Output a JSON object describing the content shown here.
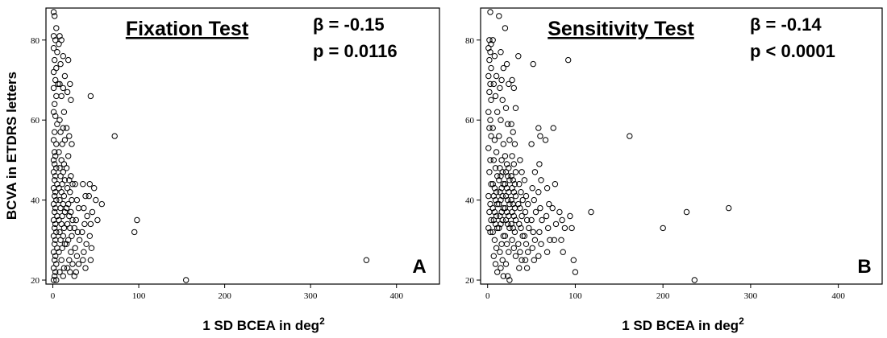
{
  "ylabel": "BCVA in ETDRS letters",
  "chart_data": [
    {
      "type": "scatter",
      "title": "Fixation Test",
      "annotations": [
        "β = -0.15",
        "p = 0.0116"
      ],
      "panel_label": "A",
      "xlabel": "1 SD BCEA in deg",
      "xlabel_superscript": "2",
      "ylabel": "BCVA in ETDRS letters",
      "xlim": [
        -8,
        450
      ],
      "ylim": [
        19,
        88
      ],
      "xticks": [
        0,
        100,
        200,
        300,
        400
      ],
      "yticks": [
        20,
        40,
        60,
        80
      ],
      "grid": false,
      "marker": "open-circle",
      "points": [
        [
          1,
          87
        ],
        [
          2,
          86
        ],
        [
          4,
          83
        ],
        [
          1,
          81
        ],
        [
          3,
          80
        ],
        [
          1,
          78
        ],
        [
          5,
          77
        ],
        [
          2,
          75
        ],
        [
          4,
          73
        ],
        [
          1,
          72
        ],
        [
          3,
          70
        ],
        [
          6,
          69
        ],
        [
          1,
          68
        ],
        [
          4,
          66
        ],
        [
          2,
          64
        ],
        [
          1,
          62
        ],
        [
          3,
          61
        ],
        [
          5,
          59
        ],
        [
          2,
          57
        ],
        [
          1,
          55
        ],
        [
          4,
          54
        ],
        [
          2,
          52
        ],
        [
          3,
          51
        ],
        [
          1,
          50
        ],
        [
          2,
          49
        ],
        [
          4,
          48
        ],
        [
          1,
          47
        ],
        [
          3,
          46
        ],
        [
          2,
          45
        ],
        [
          5,
          44
        ],
        [
          1,
          43
        ],
        [
          3,
          42
        ],
        [
          2,
          41
        ],
        [
          4,
          40
        ],
        [
          1,
          39
        ],
        [
          3,
          38
        ],
        [
          2,
          37
        ],
        [
          5,
          36
        ],
        [
          1,
          35
        ],
        [
          3,
          34
        ],
        [
          2,
          33
        ],
        [
          4,
          32
        ],
        [
          1,
          31
        ],
        [
          3,
          30
        ],
        [
          2,
          29
        ],
        [
          5,
          28
        ],
        [
          1,
          27
        ],
        [
          3,
          26
        ],
        [
          2,
          25
        ],
        [
          4,
          24
        ],
        [
          1,
          23
        ],
        [
          3,
          22
        ],
        [
          2,
          21
        ],
        [
          4,
          20
        ],
        [
          1,
          20
        ],
        [
          8,
          81
        ],
        [
          7,
          79
        ],
        [
          10,
          80
        ],
        [
          12,
          76
        ],
        [
          9,
          74
        ],
        [
          14,
          71
        ],
        [
          8,
          69
        ],
        [
          12,
          68
        ],
        [
          10,
          66
        ],
        [
          13,
          62
        ],
        [
          8,
          60
        ],
        [
          12,
          58
        ],
        [
          9,
          57
        ],
        [
          14,
          55
        ],
        [
          11,
          54
        ],
        [
          7,
          52
        ],
        [
          10,
          50
        ],
        [
          13,
          49
        ],
        [
          8,
          48
        ],
        [
          12,
          47
        ],
        [
          9,
          46
        ],
        [
          14,
          45
        ],
        [
          11,
          44
        ],
        [
          7,
          43
        ],
        [
          10,
          42
        ],
        [
          13,
          41
        ],
        [
          8,
          40
        ],
        [
          12,
          39
        ],
        [
          9,
          38
        ],
        [
          14,
          37
        ],
        [
          11,
          36
        ],
        [
          7,
          35
        ],
        [
          10,
          34
        ],
        [
          13,
          33
        ],
        [
          8,
          32
        ],
        [
          12,
          31
        ],
        [
          9,
          30
        ],
        [
          14,
          29
        ],
        [
          11,
          28
        ],
        [
          7,
          27
        ],
        [
          10,
          25
        ],
        [
          13,
          23
        ],
        [
          8,
          22
        ],
        [
          12,
          21
        ],
        [
          18,
          75
        ],
        [
          20,
          69
        ],
        [
          17,
          67
        ],
        [
          21,
          65
        ],
        [
          16,
          58
        ],
        [
          19,
          56
        ],
        [
          22,
          54
        ],
        [
          18,
          51
        ],
        [
          16,
          48
        ],
        [
          21,
          46
        ],
        [
          19,
          45
        ],
        [
          23,
          44
        ],
        [
          17,
          43
        ],
        [
          20,
          42
        ],
        [
          22,
          40
        ],
        [
          18,
          39
        ],
        [
          16,
          38
        ],
        [
          21,
          37
        ],
        [
          19,
          36
        ],
        [
          23,
          35
        ],
        [
          17,
          34
        ],
        [
          20,
          33
        ],
        [
          22,
          31
        ],
        [
          18,
          30
        ],
        [
          16,
          29
        ],
        [
          21,
          27
        ],
        [
          19,
          25
        ],
        [
          23,
          24
        ],
        [
          17,
          23
        ],
        [
          20,
          22
        ],
        [
          26,
          44
        ],
        [
          28,
          40
        ],
        [
          30,
          38
        ],
        [
          27,
          35
        ],
        [
          25,
          33
        ],
        [
          29,
          32
        ],
        [
          31,
          30
        ],
        [
          26,
          28
        ],
        [
          28,
          26
        ],
        [
          30,
          24
        ],
        [
          27,
          22
        ],
        [
          25,
          21
        ],
        [
          35,
          44
        ],
        [
          38,
          41
        ],
        [
          36,
          38
        ],
        [
          40,
          36
        ],
        [
          37,
          34
        ],
        [
          34,
          32
        ],
        [
          39,
          29
        ],
        [
          36,
          27
        ],
        [
          35,
          25
        ],
        [
          38,
          23
        ],
        [
          44,
          66
        ],
        [
          43,
          44
        ],
        [
          42,
          41
        ],
        [
          46,
          37
        ],
        [
          44,
          34
        ],
        [
          43,
          31
        ],
        [
          45,
          28
        ],
        [
          44,
          25
        ],
        [
          48,
          43
        ],
        [
          50,
          40
        ],
        [
          52,
          35
        ],
        [
          57,
          39
        ],
        [
          72,
          56
        ],
        [
          95,
          32
        ],
        [
          98,
          35
        ],
        [
          155,
          20
        ],
        [
          365,
          25
        ]
      ]
    },
    {
      "type": "scatter",
      "title": "Sensitivity Test",
      "annotations": [
        "β = -0.14",
        "p < 0.0001"
      ],
      "panel_label": "B",
      "xlabel": "1 SD BCEA in deg",
      "xlabel_superscript": "2",
      "ylabel": "",
      "xlim": [
        -8,
        450
      ],
      "ylim": [
        19,
        88
      ],
      "xticks": [
        0,
        100,
        200,
        300,
        400
      ],
      "yticks": [
        20,
        40,
        60,
        80
      ],
      "grid": false,
      "marker": "open-circle",
      "points": [
        [
          3,
          87
        ],
        [
          2,
          80
        ],
        [
          4,
          79
        ],
        [
          1,
          78
        ],
        [
          3,
          77
        ],
        [
          2,
          75
        ],
        [
          4,
          73
        ],
        [
          1,
          71
        ],
        [
          3,
          69
        ],
        [
          2,
          67
        ],
        [
          4,
          65
        ],
        [
          1,
          62
        ],
        [
          3,
          60
        ],
        [
          2,
          58
        ],
        [
          4,
          56
        ],
        [
          1,
          53
        ],
        [
          3,
          50
        ],
        [
          2,
          47
        ],
        [
          4,
          44
        ],
        [
          1,
          41
        ],
        [
          3,
          39
        ],
        [
          2,
          37
        ],
        [
          4,
          35
        ],
        [
          1,
          33
        ],
        [
          3,
          32
        ],
        [
          6,
          80
        ],
        [
          8,
          76
        ],
        [
          10,
          71
        ],
        [
          7,
          69
        ],
        [
          9,
          66
        ],
        [
          11,
          62
        ],
        [
          6,
          58
        ],
        [
          8,
          55
        ],
        [
          10,
          52
        ],
        [
          7,
          50
        ],
        [
          9,
          48
        ],
        [
          11,
          46
        ],
        [
          6,
          44
        ],
        [
          8,
          43
        ],
        [
          10,
          42
        ],
        [
          7,
          41
        ],
        [
          9,
          40
        ],
        [
          11,
          39
        ],
        [
          6,
          38
        ],
        [
          8,
          37
        ],
        [
          10,
          36
        ],
        [
          7,
          35
        ],
        [
          9,
          34
        ],
        [
          11,
          33
        ],
        [
          6,
          32
        ],
        [
          8,
          30
        ],
        [
          10,
          28
        ],
        [
          7,
          26
        ],
        [
          9,
          24
        ],
        [
          11,
          22
        ],
        [
          13,
          86
        ],
        [
          15,
          77
        ],
        [
          18,
          73
        ],
        [
          16,
          70
        ],
        [
          14,
          68
        ],
        [
          17,
          65
        ],
        [
          15,
          60
        ],
        [
          13,
          56
        ],
        [
          18,
          54
        ],
        [
          16,
          50
        ],
        [
          14,
          48
        ],
        [
          17,
          47
        ],
        [
          15,
          46
        ],
        [
          13,
          45
        ],
        [
          18,
          44
        ],
        [
          16,
          43
        ],
        [
          14,
          42
        ],
        [
          17,
          41
        ],
        [
          15,
          40
        ],
        [
          13,
          39
        ],
        [
          18,
          38
        ],
        [
          16,
          37
        ],
        [
          14,
          36
        ],
        [
          17,
          35
        ],
        [
          15,
          34
        ],
        [
          13,
          33
        ],
        [
          18,
          31
        ],
        [
          16,
          29
        ],
        [
          14,
          27
        ],
        [
          17,
          25
        ],
        [
          15,
          23
        ],
        [
          18,
          21
        ],
        [
          20,
          83
        ],
        [
          22,
          74
        ],
        [
          24,
          69
        ],
        [
          21,
          63
        ],
        [
          23,
          59
        ],
        [
          25,
          55
        ],
        [
          20,
          51
        ],
        [
          22,
          49
        ],
        [
          24,
          48
        ],
        [
          21,
          47
        ],
        [
          23,
          46
        ],
        [
          25,
          45
        ],
        [
          20,
          44
        ],
        [
          22,
          43
        ],
        [
          24,
          42
        ],
        [
          21,
          41
        ],
        [
          23,
          40
        ],
        [
          25,
          39
        ],
        [
          20,
          38
        ],
        [
          22,
          37
        ],
        [
          24,
          36
        ],
        [
          21,
          35
        ],
        [
          23,
          34
        ],
        [
          25,
          33
        ],
        [
          20,
          31
        ],
        [
          22,
          29
        ],
        [
          24,
          27
        ],
        [
          21,
          24
        ],
        [
          23,
          21
        ],
        [
          25,
          20
        ],
        [
          28,
          70
        ],
        [
          30,
          68
        ],
        [
          32,
          63
        ],
        [
          27,
          59
        ],
        [
          29,
          57
        ],
        [
          31,
          54
        ],
        [
          28,
          51
        ],
        [
          30,
          49
        ],
        [
          32,
          47
        ],
        [
          27,
          46
        ],
        [
          29,
          45
        ],
        [
          31,
          44
        ],
        [
          28,
          43
        ],
        [
          30,
          42
        ],
        [
          32,
          41
        ],
        [
          27,
          40
        ],
        [
          29,
          39
        ],
        [
          31,
          38
        ],
        [
          28,
          37
        ],
        [
          30,
          36
        ],
        [
          32,
          35
        ],
        [
          27,
          34
        ],
        [
          29,
          33
        ],
        [
          31,
          32
        ],
        [
          28,
          30
        ],
        [
          30,
          28
        ],
        [
          32,
          26
        ],
        [
          35,
          76
        ],
        [
          37,
          50
        ],
        [
          39,
          47
        ],
        [
          36,
          44
        ],
        [
          38,
          42
        ],
        [
          40,
          40
        ],
        [
          35,
          39
        ],
        [
          37,
          38
        ],
        [
          39,
          36
        ],
        [
          36,
          34
        ],
        [
          38,
          33
        ],
        [
          40,
          31
        ],
        [
          35,
          29
        ],
        [
          37,
          27
        ],
        [
          39,
          25
        ],
        [
          36,
          23
        ],
        [
          42,
          45
        ],
        [
          44,
          41
        ],
        [
          46,
          39
        ],
        [
          43,
          37
        ],
        [
          45,
          35
        ],
        [
          47,
          33
        ],
        [
          42,
          31
        ],
        [
          44,
          29
        ],
        [
          46,
          27
        ],
        [
          43,
          25
        ],
        [
          45,
          23
        ],
        [
          52,
          74
        ],
        [
          50,
          54
        ],
        [
          54,
          47
        ],
        [
          51,
          43
        ],
        [
          53,
          40
        ],
        [
          55,
          37
        ],
        [
          50,
          35
        ],
        [
          52,
          32
        ],
        [
          54,
          30
        ],
        [
          51,
          28
        ],
        [
          53,
          25
        ],
        [
          58,
          58
        ],
        [
          60,
          56
        ],
        [
          59,
          49
        ],
        [
          61,
          45
        ],
        [
          58,
          42
        ],
        [
          60,
          38
        ],
        [
          62,
          35
        ],
        [
          59,
          32
        ],
        [
          61,
          29
        ],
        [
          58,
          26
        ],
        [
          66,
          55
        ],
        [
          68,
          43
        ],
        [
          70,
          39
        ],
        [
          67,
          36
        ],
        [
          69,
          33
        ],
        [
          71,
          30
        ],
        [
          68,
          27
        ],
        [
          75,
          58
        ],
        [
          77,
          44
        ],
        [
          74,
          38
        ],
        [
          78,
          34
        ],
        [
          76,
          30
        ],
        [
          82,
          37
        ],
        [
          85,
          35
        ],
        [
          88,
          33
        ],
        [
          84,
          30
        ],
        [
          86,
          27
        ],
        [
          92,
          75
        ],
        [
          94,
          36
        ],
        [
          96,
          33
        ],
        [
          98,
          25
        ],
        [
          100,
          22
        ],
        [
          118,
          37
        ],
        [
          162,
          56
        ],
        [
          200,
          33
        ],
        [
          227,
          37
        ],
        [
          236,
          20
        ],
        [
          275,
          38
        ]
      ]
    }
  ]
}
